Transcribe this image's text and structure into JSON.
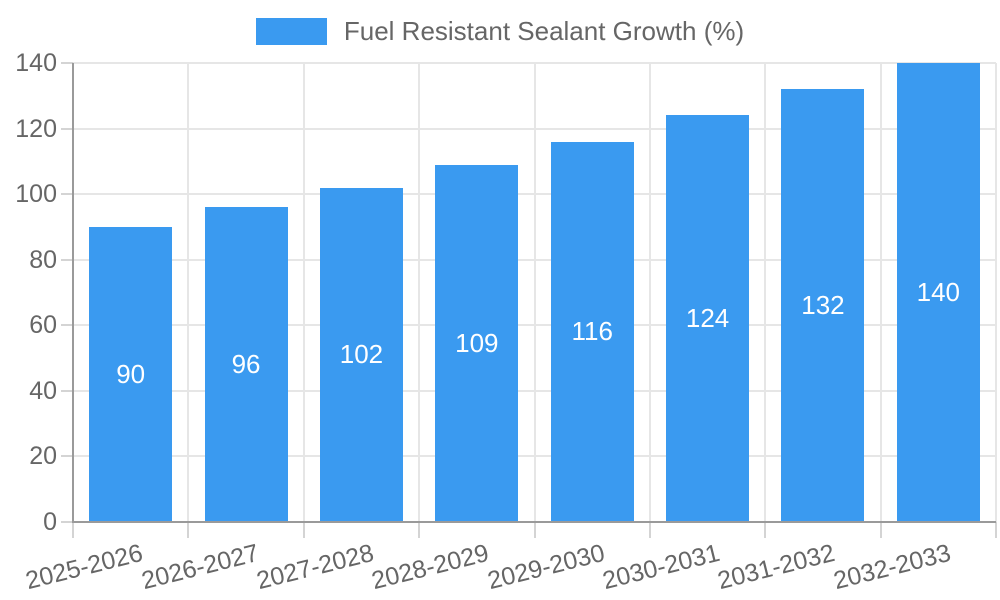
{
  "chart_data": {
    "type": "bar",
    "legend": "Fuel Resistant Sealant Growth (%)",
    "legend_position": "top",
    "categories": [
      "2025-2026",
      "2026-2027",
      "2027-2028",
      "2028-2029",
      "2029-2030",
      "2030-2031",
      "2031-2032",
      "2032-2033"
    ],
    "values": [
      90,
      96,
      102,
      109,
      116,
      124,
      132,
      140
    ],
    "bar_value_labels": [
      "90",
      "96",
      "102",
      "109",
      "116",
      "124",
      "132",
      "140"
    ],
    "yticks": [
      0,
      20,
      40,
      60,
      80,
      100,
      120,
      140
    ],
    "ylim": [
      0,
      140
    ],
    "grid": true,
    "x_label_rotation_deg": -14,
    "bar_color": "#3a9af0",
    "colors": {
      "bar": "#3a9af0",
      "bar_label": "#ffffff",
      "axis_text": "#666666",
      "grid_line": "#e6e6e6",
      "tick_mark": "#d4d4d4",
      "axis_line": "#9a9a9a",
      "background": "#ffffff"
    }
  }
}
